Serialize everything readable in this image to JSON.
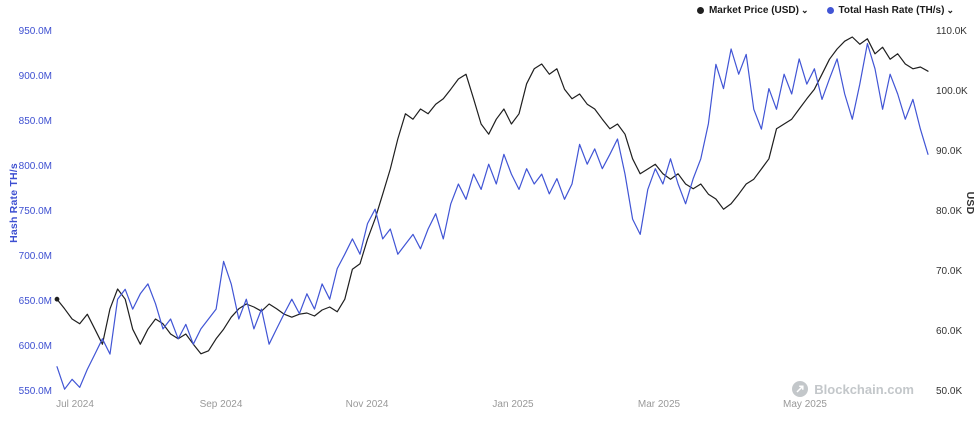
{
  "icons": {
    "chevron": "⌄"
  },
  "watermark": {
    "text": "Blockchain.com"
  },
  "chart_data": {
    "type": "line",
    "title": "",
    "grid": "off",
    "legend_position": "top-right",
    "x_ticks": [
      "Jul 2024",
      "Sep 2024",
      "Nov 2024",
      "Jan 2025",
      "Mar 2025",
      "May 2025"
    ],
    "left_axis": {
      "label": "Hash Rate TH/s",
      "unit": "M TH/s",
      "min": 550,
      "max": 950,
      "ticks": [
        "550.0M",
        "600.0M",
        "650.0M",
        "700.0M",
        "750.0M",
        "800.0M",
        "850.0M",
        "900.0M",
        "950.0M"
      ]
    },
    "right_axis": {
      "label": "USD",
      "unit": "K USD",
      "min": 50,
      "max": 110,
      "ticks": [
        "50.0K",
        "60.0K",
        "70.0K",
        "80.0K",
        "90.0K",
        "100.0K",
        "110.0K"
      ]
    },
    "series": [
      {
        "name": "Market Price (USD)",
        "color": "#1f1f1f",
        "axis": "right",
        "values": [
          65.3,
          63.7,
          62.0,
          61.2,
          62.8,
          60.3,
          57.8,
          63.7,
          67.0,
          65.3,
          60.3,
          57.8,
          60.3,
          62.0,
          61.2,
          59.5,
          58.7,
          59.5,
          57.8,
          56.2,
          56.7,
          58.7,
          60.3,
          62.3,
          63.7,
          64.5,
          64.0,
          63.3,
          64.5,
          63.7,
          62.8,
          62.3,
          62.8,
          63.0,
          62.5,
          63.5,
          64.0,
          63.2,
          65.3,
          70.3,
          71.2,
          75.3,
          78.7,
          82.8,
          87.0,
          92.0,
          96.2,
          95.3,
          97.0,
          96.2,
          97.8,
          98.7,
          100.3,
          102.0,
          102.8,
          98.7,
          94.5,
          92.8,
          95.3,
          97.0,
          94.5,
          96.2,
          101.2,
          103.7,
          104.5,
          102.8,
          103.7,
          100.3,
          98.7,
          99.5,
          97.8,
          97.0,
          95.3,
          93.7,
          94.5,
          92.8,
          88.7,
          86.2,
          87.0,
          87.8,
          86.2,
          85.3,
          86.2,
          84.5,
          83.7,
          84.5,
          82.8,
          82.0,
          80.3,
          81.2,
          82.8,
          84.5,
          85.3,
          87.0,
          88.7,
          93.7,
          94.5,
          95.3,
          97.0,
          98.7,
          100.3,
          102.8,
          105.3,
          107.0,
          108.3,
          109.0,
          107.8,
          108.7,
          106.2,
          107.3,
          105.3,
          106.2,
          104.5,
          103.7,
          104.0,
          103.3
        ]
      },
      {
        "name": "Total Hash Rate (TH/s)",
        "color": "#4155d5",
        "axis": "left",
        "values": [
          577,
          552,
          563,
          554,
          574,
          591,
          608,
          591,
          652,
          663,
          641,
          658,
          669,
          647,
          619,
          630,
          608,
          624,
          602,
          619,
          630,
          641,
          694,
          669,
          630,
          652,
          619,
          641,
          602,
          619,
          636,
          652,
          636,
          658,
          641,
          669,
          652,
          686,
          702,
          719,
          702,
          736,
          752,
          719,
          730,
          702,
          713,
          724,
          708,
          730,
          747,
          719,
          758,
          780,
          763,
          791,
          774,
          802,
          780,
          813,
          791,
          774,
          797,
          780,
          791,
          769,
          786,
          763,
          780,
          824,
          802,
          819,
          797,
          813,
          830,
          791,
          741,
          724,
          774,
          797,
          780,
          808,
          780,
          758,
          786,
          808,
          847,
          913,
          886,
          930,
          902,
          924,
          863,
          841,
          886,
          863,
          902,
          880,
          919,
          891,
          908,
          874,
          897,
          919,
          880,
          852,
          891,
          936,
          908,
          863,
          902,
          880,
          852,
          874,
          841,
          813
        ]
      }
    ]
  }
}
